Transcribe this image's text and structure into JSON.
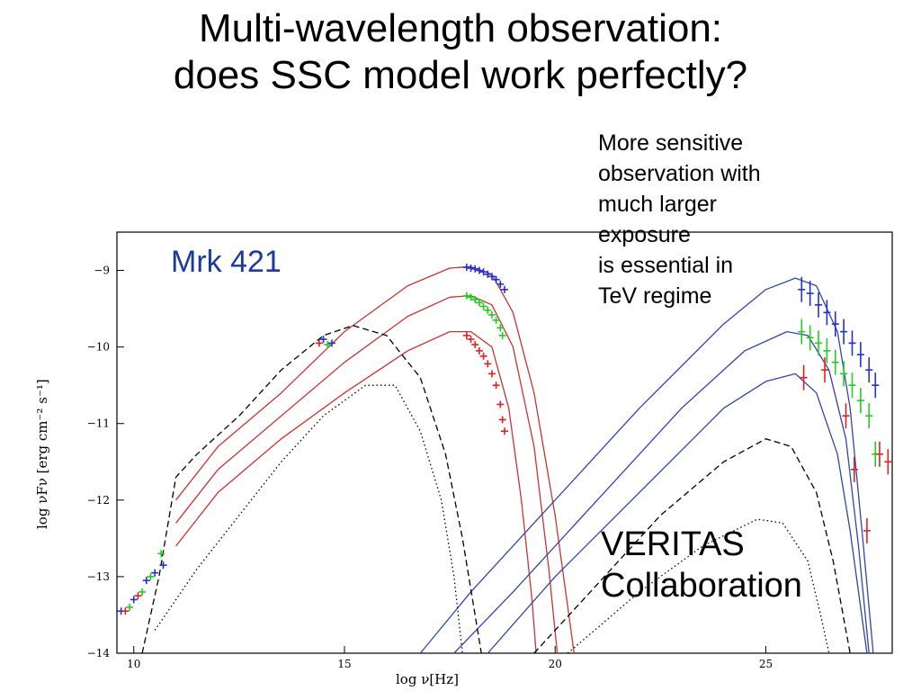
{
  "slide": {
    "title_line1": "Multi-wavelength observation:",
    "title_line2": "does SSC model work perfectly?",
    "note_lines": [
      "More sensitive",
      "observation with",
      "much larger",
      "exposure",
      "is essential in",
      "TeV regime"
    ],
    "collab_line1": "VERITAS",
    "collab_line2": "Collaboration"
  },
  "chart_data": {
    "type": "scatter",
    "title": "Mrk 421",
    "title_color": "#1a3a9c",
    "xlabel": "log ν[Hz]",
    "ylabel": "log νFν [erg cm⁻² s⁻¹]",
    "xlim": [
      9.6,
      28.0
    ],
    "ylim": [
      -14,
      -8.5
    ],
    "xticks": [
      10,
      15,
      20,
      25
    ],
    "yticks": [
      -9,
      -10,
      -11,
      -12,
      -13,
      -14
    ],
    "colors": {
      "high": "#2233cc",
      "mid": "#22cc22",
      "low": "#dd2222",
      "model_sync": "#cc3333",
      "model_ic": "#3344aa",
      "model_other": "#000000"
    },
    "models": [
      {
        "name": "sync-high",
        "style": "solid",
        "color": "#cc3333",
        "points": [
          [
            11.0,
            -12.0
          ],
          [
            12.0,
            -11.3
          ],
          [
            13.5,
            -10.6
          ],
          [
            15.0,
            -9.8
          ],
          [
            16.5,
            -9.2
          ],
          [
            17.5,
            -8.97
          ],
          [
            18.0,
            -8.95
          ],
          [
            18.5,
            -9.05
          ],
          [
            19.0,
            -9.55
          ],
          [
            19.5,
            -10.6
          ],
          [
            20.0,
            -12.2
          ],
          [
            20.3,
            -13.4
          ],
          [
            20.45,
            -14.0
          ]
        ]
      },
      {
        "name": "sync-mid",
        "style": "solid",
        "color": "#cc3333",
        "points": [
          [
            11.0,
            -12.3
          ],
          [
            12.0,
            -11.6
          ],
          [
            13.5,
            -10.9
          ],
          [
            15.0,
            -10.2
          ],
          [
            16.5,
            -9.6
          ],
          [
            17.5,
            -9.35
          ],
          [
            18.0,
            -9.33
          ],
          [
            18.5,
            -9.45
          ],
          [
            19.0,
            -10.0
          ],
          [
            19.5,
            -11.3
          ],
          [
            19.85,
            -12.9
          ],
          [
            20.05,
            -14.0
          ]
        ]
      },
      {
        "name": "sync-low",
        "style": "solid",
        "color": "#cc3333",
        "points": [
          [
            11.0,
            -12.6
          ],
          [
            12.0,
            -11.9
          ],
          [
            13.5,
            -11.2
          ],
          [
            15.0,
            -10.6
          ],
          [
            16.5,
            -10.05
          ],
          [
            17.5,
            -9.8
          ],
          [
            18.0,
            -9.8
          ],
          [
            18.5,
            -10.0
          ],
          [
            18.9,
            -10.8
          ],
          [
            19.2,
            -12.0
          ],
          [
            19.45,
            -13.3
          ],
          [
            19.55,
            -14.0
          ]
        ]
      },
      {
        "name": "ic-high",
        "style": "solid",
        "color": "#3344aa",
        "points": [
          [
            16.8,
            -14.0
          ],
          [
            18.0,
            -13.2
          ],
          [
            20.0,
            -12.0
          ],
          [
            22.0,
            -10.8
          ],
          [
            24.0,
            -9.7
          ],
          [
            25.0,
            -9.25
          ],
          [
            25.7,
            -9.1
          ],
          [
            26.2,
            -9.2
          ],
          [
            26.7,
            -9.8
          ],
          [
            27.0,
            -10.8
          ],
          [
            27.3,
            -12.5
          ],
          [
            27.55,
            -14.0
          ]
        ]
      },
      {
        "name": "ic-mid",
        "style": "solid",
        "color": "#3344aa",
        "points": [
          [
            17.6,
            -14.0
          ],
          [
            19.0,
            -13.2
          ],
          [
            21.0,
            -12.0
          ],
          [
            23.0,
            -10.8
          ],
          [
            24.5,
            -10.05
          ],
          [
            25.5,
            -9.8
          ],
          [
            26.0,
            -9.85
          ],
          [
            26.5,
            -10.3
          ],
          [
            26.9,
            -11.2
          ],
          [
            27.2,
            -12.6
          ],
          [
            27.45,
            -14.0
          ]
        ]
      },
      {
        "name": "ic-low",
        "style": "solid",
        "color": "#3344aa",
        "points": [
          [
            18.4,
            -14.0
          ],
          [
            20.0,
            -13.0
          ],
          [
            22.0,
            -11.9
          ],
          [
            24.0,
            -10.8
          ],
          [
            25.0,
            -10.45
          ],
          [
            25.7,
            -10.35
          ],
          [
            26.2,
            -10.6
          ],
          [
            26.7,
            -11.4
          ],
          [
            27.0,
            -12.4
          ],
          [
            27.3,
            -13.6
          ],
          [
            27.4,
            -14.0
          ]
        ]
      },
      {
        "name": "dashed",
        "style": "dashed",
        "color": "#000000",
        "points": [
          [
            10.2,
            -14.0
          ],
          [
            10.6,
            -13.0
          ],
          [
            11.0,
            -11.7
          ],
          [
            11.5,
            -11.4
          ],
          [
            12.5,
            -10.9
          ],
          [
            13.5,
            -10.3
          ],
          [
            14.5,
            -9.85
          ],
          [
            15.2,
            -9.72
          ],
          [
            16.0,
            -9.85
          ],
          [
            16.8,
            -10.4
          ],
          [
            17.4,
            -11.4
          ],
          [
            17.8,
            -12.5
          ],
          [
            18.1,
            -13.5
          ],
          [
            18.25,
            -14.0
          ]
        ]
      },
      {
        "name": "dashed-ic",
        "style": "dashed",
        "color": "#000000",
        "points": [
          [
            19.5,
            -14.0
          ],
          [
            21.0,
            -13.1
          ],
          [
            22.5,
            -12.2
          ],
          [
            24.0,
            -11.5
          ],
          [
            25.0,
            -11.2
          ],
          [
            25.6,
            -11.3
          ],
          [
            26.2,
            -11.9
          ],
          [
            26.6,
            -12.8
          ],
          [
            26.9,
            -13.7
          ],
          [
            27.0,
            -14.0
          ]
        ]
      },
      {
        "name": "dotted",
        "style": "dotted",
        "color": "#000000",
        "points": [
          [
            10.5,
            -13.7
          ],
          [
            11.5,
            -12.9
          ],
          [
            12.5,
            -12.2
          ],
          [
            13.5,
            -11.5
          ],
          [
            14.5,
            -10.9
          ],
          [
            15.5,
            -10.5
          ],
          [
            16.2,
            -10.5
          ],
          [
            16.8,
            -11.1
          ],
          [
            17.3,
            -12.0
          ],
          [
            17.6,
            -13.0
          ],
          [
            17.8,
            -14.0
          ]
        ]
      },
      {
        "name": "dotted-ic",
        "style": "dotted",
        "color": "#000000",
        "points": [
          [
            20.3,
            -14.0
          ],
          [
            22.0,
            -13.2
          ],
          [
            23.5,
            -12.6
          ],
          [
            24.8,
            -12.25
          ],
          [
            25.4,
            -12.3
          ],
          [
            26.0,
            -12.8
          ],
          [
            26.3,
            -13.5
          ],
          [
            26.5,
            -14.0
          ]
        ]
      }
    ],
    "series": [
      {
        "name": "xray-high",
        "color": "#2233cc",
        "points": [
          [
            17.9,
            -8.96
          ],
          [
            18.0,
            -8.97
          ],
          [
            18.1,
            -8.98
          ],
          [
            18.2,
            -9.0
          ],
          [
            18.3,
            -9.02
          ],
          [
            18.4,
            -9.05
          ],
          [
            18.5,
            -9.08
          ],
          [
            18.6,
            -9.12
          ],
          [
            18.7,
            -9.18
          ],
          [
            18.8,
            -9.25
          ]
        ]
      },
      {
        "name": "xray-mid",
        "color": "#22cc22",
        "points": [
          [
            17.9,
            -9.33
          ],
          [
            18.0,
            -9.35
          ],
          [
            18.1,
            -9.38
          ],
          [
            18.2,
            -9.42
          ],
          [
            18.3,
            -9.47
          ],
          [
            18.4,
            -9.52
          ],
          [
            18.5,
            -9.58
          ],
          [
            18.6,
            -9.65
          ],
          [
            18.7,
            -9.75
          ],
          [
            18.75,
            -9.85
          ]
        ]
      },
      {
        "name": "xray-low",
        "color": "#dd2222",
        "points": [
          [
            17.9,
            -9.85
          ],
          [
            18.0,
            -9.9
          ],
          [
            18.1,
            -9.97
          ],
          [
            18.2,
            -10.05
          ],
          [
            18.3,
            -10.12
          ],
          [
            18.4,
            -10.22
          ],
          [
            18.5,
            -10.35
          ],
          [
            18.6,
            -10.5
          ],
          [
            18.7,
            -10.75
          ],
          [
            18.75,
            -10.95
          ],
          [
            18.8,
            -11.1
          ]
        ]
      },
      {
        "name": "radio",
        "color": "#2233cc",
        "points": [
          [
            9.7,
            -13.45
          ],
          [
            10.0,
            -13.3
          ],
          [
            10.3,
            -13.05
          ],
          [
            10.5,
            -12.95
          ],
          [
            10.7,
            -12.85
          ],
          [
            14.5,
            -9.9
          ],
          [
            14.7,
            -9.95
          ]
        ]
      },
      {
        "name": "radio-mid",
        "color": "#22cc22",
        "points": [
          [
            9.9,
            -13.4
          ],
          [
            10.2,
            -13.2
          ],
          [
            10.4,
            -13.0
          ],
          [
            10.65,
            -12.7
          ],
          [
            14.6,
            -9.97
          ]
        ]
      },
      {
        "name": "radio-low",
        "color": "#dd2222",
        "points": [
          [
            9.8,
            -13.45
          ],
          [
            10.1,
            -13.25
          ],
          [
            14.4,
            -9.95
          ]
        ]
      },
      {
        "name": "tev-high",
        "color": "#2233cc",
        "points": [
          [
            25.85,
            -9.25
          ],
          [
            26.05,
            -9.3
          ],
          [
            26.25,
            -9.45
          ],
          [
            26.45,
            -9.55
          ],
          [
            26.65,
            -9.7
          ],
          [
            26.85,
            -9.8
          ],
          [
            27.05,
            -9.95
          ],
          [
            27.25,
            -10.1
          ],
          [
            27.45,
            -10.3
          ],
          [
            27.6,
            -10.5
          ]
        ]
      },
      {
        "name": "tev-mid",
        "color": "#22cc22",
        "points": [
          [
            25.85,
            -9.8
          ],
          [
            26.05,
            -9.88
          ],
          [
            26.25,
            -9.95
          ],
          [
            26.45,
            -10.05
          ],
          [
            26.65,
            -10.2
          ],
          [
            26.85,
            -10.35
          ],
          [
            27.05,
            -10.5
          ],
          [
            27.25,
            -10.7
          ],
          [
            27.45,
            -10.9
          ],
          [
            27.6,
            -11.4
          ]
        ]
      },
      {
        "name": "tev-low",
        "color": "#dd2222",
        "points": [
          [
            25.9,
            -10.4
          ],
          [
            26.4,
            -10.3
          ],
          [
            26.9,
            -10.9
          ],
          [
            27.1,
            -11.6
          ],
          [
            27.4,
            -12.4
          ],
          [
            27.7,
            -11.4
          ],
          [
            27.9,
            -11.5
          ]
        ]
      }
    ]
  }
}
